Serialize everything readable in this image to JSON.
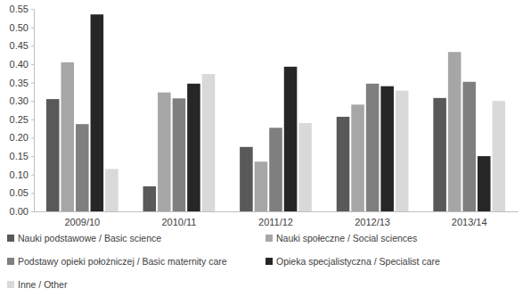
{
  "chart_data": {
    "type": "bar",
    "categories": [
      "2009/10",
      "2010/11",
      "2011/12",
      "2012/13",
      "2013/14"
    ],
    "series": [
      {
        "name": "Nauki podstawowe / Basic science",
        "color": "#595959",
        "values": [
          0.305,
          0.068,
          0.175,
          0.257,
          0.308
        ]
      },
      {
        "name": "Nauki społeczne / Social sciences",
        "color": "#a6a6a6",
        "values": [
          0.405,
          0.323,
          0.135,
          0.29,
          0.433
        ]
      },
      {
        "name": "Podstawy opieki położniczej / Basic maternity care",
        "color": "#7f7f7f",
        "values": [
          0.237,
          0.307,
          0.227,
          0.347,
          0.352
        ]
      },
      {
        "name": "Opieka specjalistyczna / Specialist care",
        "color": "#262626",
        "values": [
          0.535,
          0.347,
          0.393,
          0.34,
          0.15
        ]
      },
      {
        "name": "Inne / Other",
        "color": "#d9d9d9",
        "values": [
          0.115,
          0.373,
          0.24,
          0.328,
          0.3
        ]
      }
    ],
    "ylim": [
      0,
      0.55
    ],
    "yticks": [
      {
        "value": 0,
        "label": "0.00"
      },
      0.05,
      {
        "value": 0.1,
        "label": "0.10"
      },
      0.15,
      {
        "value": 0.2,
        "label": "0.20"
      },
      0.25,
      {
        "value": 0.3,
        "label": "0.30"
      },
      0.35,
      {
        "value": 0.4,
        "label": "0.40"
      },
      0.45,
      {
        "value": 0.5,
        "label": "0.50"
      },
      0.55
    ],
    "grid": false,
    "legend": "bottom"
  }
}
